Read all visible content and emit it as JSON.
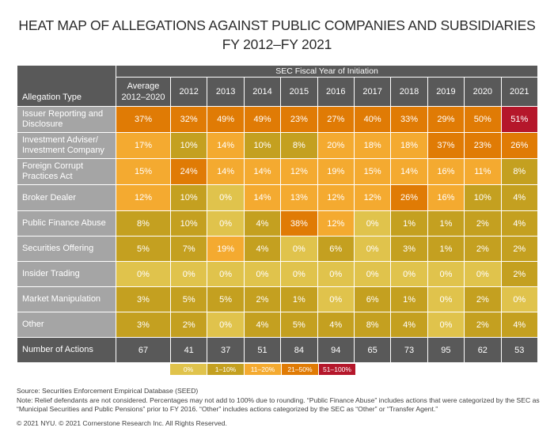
{
  "title_line1": "HEAT MAP OF ALLEGATIONS AGAINST PUBLIC COMPANIES AND SUBSIDIARIES",
  "title_line2": "FY 2012–FY 2021",
  "colors": {
    "0%": "#e0c34c",
    "1-10%": "#c4a020",
    "11-20%": "#f4aa30",
    "21-50%": "#e07b05",
    "51-100%": "#b5172b",
    "header": "#595959",
    "label": "#a5a5a5"
  },
  "chart_data": {
    "type": "heatmap",
    "title": "HEAT MAP OF ALLEGATIONS AGAINST PUBLIC COMPANIES AND SUBSIDIARIES FY 2012–FY 2021",
    "group_header": "SEC Fiscal Year of Initiation",
    "row_header": "Allegation Type",
    "columns": [
      "Average 2012–2020",
      "2012",
      "2013",
      "2014",
      "2015",
      "2016",
      "2017",
      "2018",
      "2019",
      "2020",
      "2021"
    ],
    "rows": [
      {
        "label": "Issuer Reporting and Disclosure",
        "values": [
          37,
          32,
          49,
          49,
          23,
          27,
          40,
          33,
          29,
          50,
          51
        ]
      },
      {
        "label": "Investment Adviser/ Investment Company",
        "values": [
          17,
          10,
          14,
          10,
          8,
          20,
          18,
          18,
          37,
          23,
          26
        ]
      },
      {
        "label": "Foreign Corrupt Practices Act",
        "values": [
          15,
          24,
          14,
          14,
          12,
          19,
          15,
          14,
          16,
          11,
          8
        ]
      },
      {
        "label": "Broker Dealer",
        "values": [
          12,
          10,
          0,
          14,
          13,
          12,
          12,
          26,
          16,
          10,
          4
        ]
      },
      {
        "label": "Public Finance Abuse",
        "values": [
          8,
          10,
          0,
          4,
          38,
          12,
          0,
          1,
          1,
          2,
          4
        ]
      },
      {
        "label": "Securities Offering",
        "values": [
          5,
          7,
          19,
          4,
          0,
          6,
          0,
          3,
          1,
          2,
          2
        ]
      },
      {
        "label": "Insider Trading",
        "values": [
          0,
          0,
          0,
          0,
          0,
          0,
          0,
          0,
          0,
          0,
          2
        ]
      },
      {
        "label": "Market Manipulation",
        "values": [
          3,
          5,
          5,
          2,
          1,
          0,
          6,
          1,
          0,
          2,
          0
        ]
      },
      {
        "label": "Other",
        "values": [
          3,
          2,
          0,
          4,
          5,
          4,
          8,
          4,
          0,
          2,
          4
        ]
      }
    ],
    "unit": "%",
    "totals": {
      "label": "Number of Actions",
      "values": [
        67,
        41,
        37,
        51,
        84,
        94,
        65,
        73,
        95,
        62,
        53
      ]
    },
    "legend": [
      "0%",
      "1–10%",
      "11–20%",
      "21–50%",
      "51–100%"
    ],
    "legend_placement": "bottom-center"
  },
  "notes": {
    "source": "Source: Securities Enforcement Empirical Database (SEED)",
    "note": "Note: Relief defendants are not considered. Percentages may not add to 100% due to rounding. “Public Finance Abuse” includes actions that were categorized by the SEC as “Municipal Securities and Public Pensions” prior to FY 2016. “Other” includes actions categorized by the SEC as “Other” or “Transfer Agent.”",
    "copyright": "© 2021 NYU. © 2021 Cornerstone Research Inc. All Rights Reserved."
  }
}
